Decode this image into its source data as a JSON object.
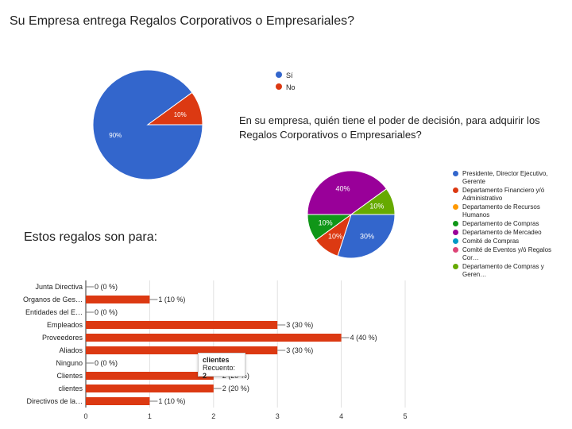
{
  "chart_data": [
    {
      "type": "pie",
      "title": "Su Empresa entrega Regalos Corporativos o Empresariales?",
      "categories": [
        "Sí",
        "No"
      ],
      "values": [
        90,
        10
      ],
      "labels": [
        "90%",
        "10%"
      ],
      "colors": [
        "#3366cc",
        "#dc3912"
      ],
      "legend_position": "right"
    },
    {
      "type": "pie",
      "title": "En su empresa, quién tiene el poder de decisión, para adquirir los Regalos Corporativos o Empresariales?",
      "categories": [
        "Presidente, Director Ejecutivo, Gerente",
        "Departamento Financiero y/ó Administrativo",
        "Departamento de Recursos Humanos",
        "Departamento de Compras",
        "Departamento de Mercadeo",
        "Comité de Compras",
        "Comité de Eventos y/ó Regalos Cor…",
        "Departamento de Compras y Geren…"
      ],
      "values": [
        30,
        10,
        0,
        10,
        40,
        0,
        0,
        10
      ],
      "labels": [
        "30%",
        "10%",
        "",
        "10%",
        "40%",
        "",
        "",
        "10%"
      ],
      "colors": [
        "#3366cc",
        "#dc3912",
        "#ff9900",
        "#109618",
        "#990099",
        "#0099c6",
        "#dd4477",
        "#66aa00"
      ],
      "legend_position": "right"
    },
    {
      "type": "bar",
      "orientation": "horizontal",
      "title": "Estos regalos son para:",
      "categories": [
        "Junta Directiva",
        "Organos de Ges…",
        "Entidades del E…",
        "Empleados",
        "Proveedores",
        "Aliados",
        "Ninguno",
        "Clientes",
        "clientes",
        "Directivos de la…"
      ],
      "values": [
        0,
        1,
        0,
        3,
        4,
        3,
        0,
        2,
        2,
        1
      ],
      "labels": [
        "0 (0 %)",
        "1 (10 %)",
        "0 (0 %)",
        "3 (30 %)",
        "4 (40 %)",
        "3 (30 %)",
        "0 (0 %)",
        "2 (20 %)",
        "2 (20 %)",
        "1 (10 %)"
      ],
      "xlim": [
        0,
        5
      ],
      "xticks": [
        "0",
        "1",
        "2",
        "3",
        "4",
        "5"
      ],
      "bar_color": "#dc3912",
      "grid": true,
      "tooltip": {
        "title": "clientes",
        "label": "Recuento:",
        "value": "2"
      }
    }
  ]
}
